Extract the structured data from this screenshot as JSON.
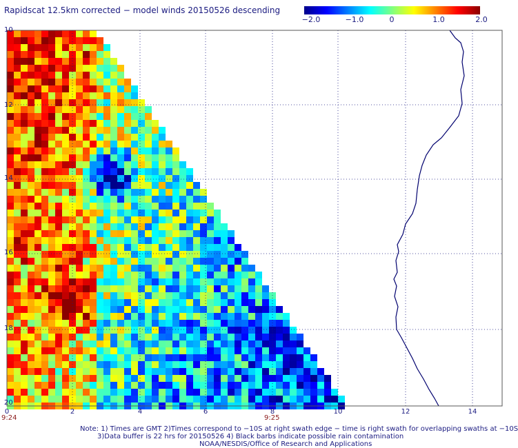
{
  "title": "Rapidscat 12.5km corrected − model winds 20150526 descending",
  "colorbar": {
    "ticks": [
      "−2.0",
      "−1.0",
      "0",
      "1.0",
      "2.0"
    ],
    "colors": [
      "#00008b",
      "#0000ff",
      "#0080ff",
      "#00ffff",
      "#80ff80",
      "#ffff00",
      "#ff8000",
      "#ff0000",
      "#8b0000"
    ]
  },
  "x_ticks": [
    "0",
    "2",
    "4",
    "6",
    "8",
    "10",
    "12",
    "14"
  ],
  "y_ticks": [
    "10",
    "12",
    "14",
    "16",
    "18",
    "20"
  ],
  "time_labels": [
    "9:24",
    "9:25"
  ],
  "notes": {
    "line1": "Note: 1) Times are GMT 2)Times correspond to −10S at right swath edge − time is right swath for overlapping swaths at −10S",
    "line2": "3)Data buffer is 22 hrs for 20150526 4) Black barbs indicate possible rain contamination",
    "line3": "NOAA/NESDIS/Office of Research and Applications"
  },
  "map_data": {
    "variable": "wind speed difference (m/s)",
    "value_range": [
      -2.0,
      2.0
    ],
    "swath": "descending",
    "date": "20150526"
  }
}
